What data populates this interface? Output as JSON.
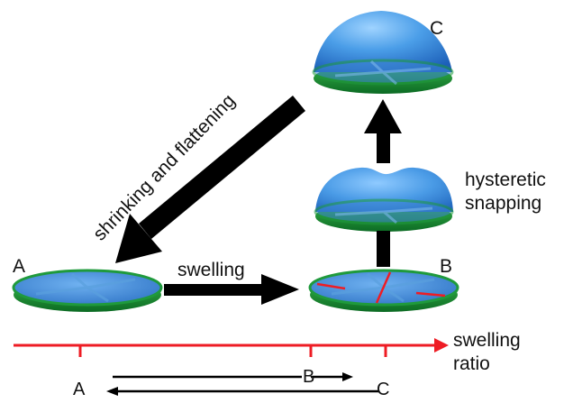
{
  "labels": {
    "state_a": "A",
    "state_b": "B",
    "state_c": "C",
    "swelling": "swelling",
    "shrinking": "shrinking and flattening",
    "hysteretic_1": "hysteretic",
    "hysteretic_2": "snapping",
    "axis_1": "swelling",
    "axis_2": "ratio",
    "tick_a": "A",
    "tick_b": "B",
    "tick_c": "C"
  },
  "colors": {
    "disc_top": "#3f86d6",
    "disc_rim": "#1f9a3c",
    "dome": "#3d8fe0",
    "red_axis": "#ee1c24",
    "arrow": "#000000"
  }
}
